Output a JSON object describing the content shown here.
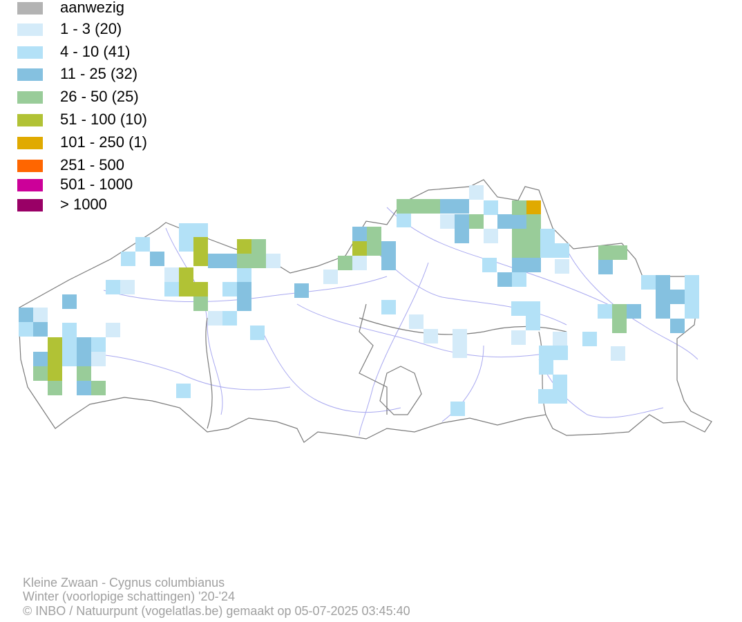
{
  "legend": {
    "items": [
      {
        "label": "aanwezig",
        "color": "#b3b3b3"
      },
      {
        "label": "1 - 3 (20)",
        "color": "#d4ebf9"
      },
      {
        "label": "4 - 10 (41)",
        "color": "#b3e1f7"
      },
      {
        "label": "11 - 25 (32)",
        "color": "#85c1e0"
      },
      {
        "label": "26 - 50 (25)",
        "color": "#99cc99"
      },
      {
        "label": "51 - 100 (10)",
        "color": "#b1c235"
      },
      {
        "label": "101 - 250 (1)",
        "color": "#e0aa00"
      },
      {
        "label": "251 - 500",
        "color": "#ff6600"
      },
      {
        "label": "501 - 1000",
        "color": "#cc0099"
      },
      {
        "label": "> 1000",
        "color": "#990066"
      }
    ]
  },
  "footer": {
    "species": "Kleine Zwaan - Cygnus columbianus",
    "period": "Winter (voorlopige schattingen) '20-'24",
    "credit": "© INBO / Natuurpunt (vogelatlas.be) gemaakt op 05-07-2025 03:45:40"
  }
}
